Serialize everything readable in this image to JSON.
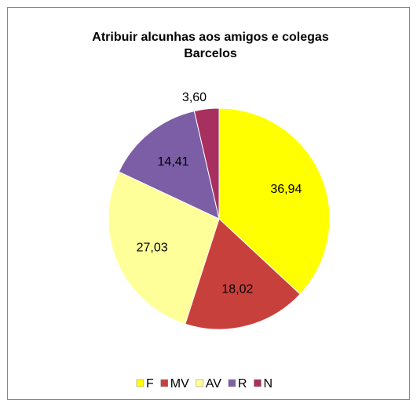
{
  "chart_data": {
    "type": "pie",
    "title": [
      "Atribuir alcunhas aos amigos e colegas",
      "Barcelos"
    ],
    "categories": [
      "F",
      "MV",
      "AV",
      "R",
      "N"
    ],
    "values": [
      36.94,
      18.02,
      27.03,
      14.41,
      3.6
    ],
    "value_labels": [
      "36,94",
      "18,02",
      "27,03",
      "14,41",
      "3,60"
    ],
    "colors": [
      "#ffff00",
      "#c8403c",
      "#ffff99",
      "#7b5ea6",
      "#a8305e"
    ],
    "legend": "bottom"
  }
}
